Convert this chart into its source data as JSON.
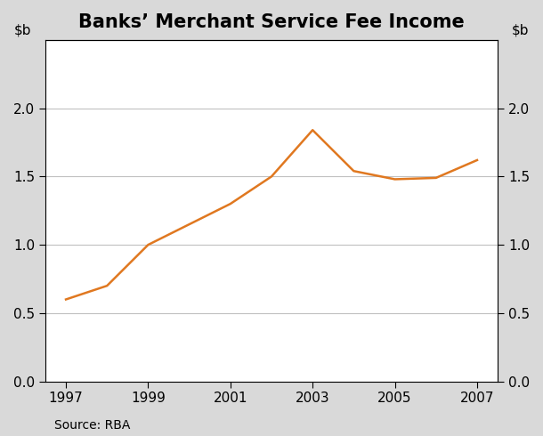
{
  "title": "Banks’ Merchant Service Fee Income",
  "source": "Source: RBA",
  "x": [
    1997,
    1998,
    1999,
    2000,
    2001,
    2002,
    2003,
    2004,
    2005,
    2006,
    2007
  ],
  "y": [
    0.6,
    0.7,
    1.0,
    1.15,
    1.3,
    1.5,
    1.84,
    1.54,
    1.48,
    1.49,
    1.62
  ],
  "line_color": "#E07820",
  "line_width": 1.8,
  "xlim": [
    1996.5,
    2007.5
  ],
  "ylim": [
    0.0,
    2.5
  ],
  "yticks": [
    0.0,
    0.5,
    1.0,
    1.5,
    2.0
  ],
  "xticks": [
    1997,
    1999,
    2001,
    2003,
    2005,
    2007
  ],
  "plot_background_color": "#ffffff",
  "figure_background_color": "#d9d9d9",
  "grid_color": "#c0c0c0",
  "title_fontsize": 15,
  "tick_fontsize": 11,
  "label_fontsize": 11,
  "source_fontsize": 10
}
